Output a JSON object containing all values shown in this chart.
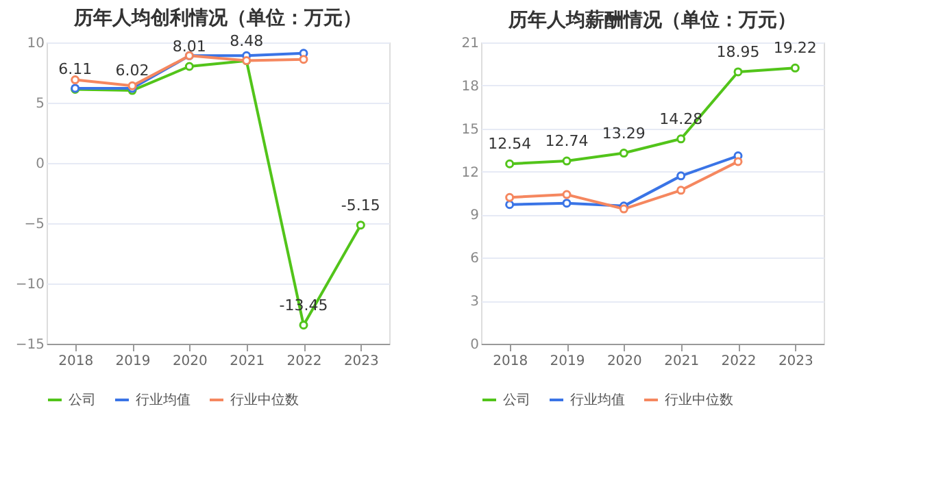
{
  "chart_data": [
    {
      "type": "line",
      "title": "历年人均创利情况（单位：万元）",
      "categories": [
        "2018",
        "2019",
        "2020",
        "2021",
        "2022",
        "2023"
      ],
      "ylim": [
        -15,
        10
      ],
      "yticks": [
        -15,
        -10,
        -5,
        0,
        5,
        10
      ],
      "grid": "y",
      "legend": "bottom",
      "marker": "circle",
      "line_style": "solid",
      "series": [
        {
          "name": "公司",
          "color": "#52c41a",
          "values": [
            6.11,
            6.02,
            8.01,
            8.48,
            -13.45,
            -5.15
          ],
          "value_labels": [
            "6.11",
            "6.02",
            "8.01",
            "8.48",
            "-13.45",
            "-5.15"
          ]
        },
        {
          "name": "行业均值",
          "color": "#3a74e6",
          "values": [
            6.2,
            6.2,
            8.9,
            8.9,
            9.1,
            null
          ]
        },
        {
          "name": "行业中位数",
          "color": "#f5875f",
          "values": [
            6.9,
            6.4,
            8.9,
            8.5,
            8.6,
            null
          ]
        }
      ]
    },
    {
      "type": "line",
      "title": "历年人均薪酬情况（单位：万元）",
      "categories": [
        "2018",
        "2019",
        "2020",
        "2021",
        "2022",
        "2023"
      ],
      "ylim": [
        0,
        21
      ],
      "yticks": [
        0,
        3,
        6,
        9,
        12,
        15,
        18,
        21
      ],
      "grid": "y",
      "legend": "bottom",
      "marker": "circle",
      "line_style": "solid",
      "series": [
        {
          "name": "公司",
          "color": "#52c41a",
          "values": [
            12.54,
            12.74,
            13.29,
            14.28,
            18.95,
            19.22
          ],
          "value_labels": [
            "12.54",
            "12.74",
            "13.29",
            "14.28",
            "18.95",
            "19.22"
          ]
        },
        {
          "name": "行业均值",
          "color": "#3a74e6",
          "values": [
            9.7,
            9.8,
            9.6,
            11.7,
            13.1,
            null
          ]
        },
        {
          "name": "行业中位数",
          "color": "#f5875f",
          "values": [
            10.2,
            10.4,
            9.4,
            10.7,
            12.7,
            null
          ]
        }
      ]
    }
  ]
}
